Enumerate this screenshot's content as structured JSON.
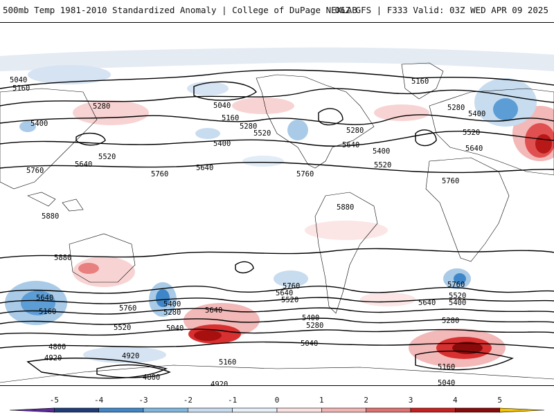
{
  "header": {
    "title_left": "500mb Temp 1981-2010 Standardized Anomaly | College of DuPage NEXLAB",
    "title_right": "06Z GFS | F333 Valid: 03Z WED APR 09 2025"
  },
  "contour_labels": [
    "5040",
    "5160",
    "5280",
    "5400",
    "5520",
    "5640",
    "5760",
    "5880",
    "4800",
    "4920"
  ],
  "colorbar": {
    "ticks": [
      "-5",
      "-4",
      "-3",
      "-2",
      "-1",
      "0",
      "1",
      "2",
      "3",
      "4",
      "5"
    ],
    "colors": [
      "#5a2a9a",
      "#1f3c7a",
      "#3f86c8",
      "#7fb6e0",
      "#c7dcef",
      "#e6eef8",
      "#fbe0e0",
      "#f2b3b3",
      "#e07070",
      "#c81e1e",
      "#8a0a0a",
      "#f5c400"
    ]
  },
  "colors": {
    "contour": "#000000",
    "land_border": "#000000",
    "background": "#ffffff"
  }
}
